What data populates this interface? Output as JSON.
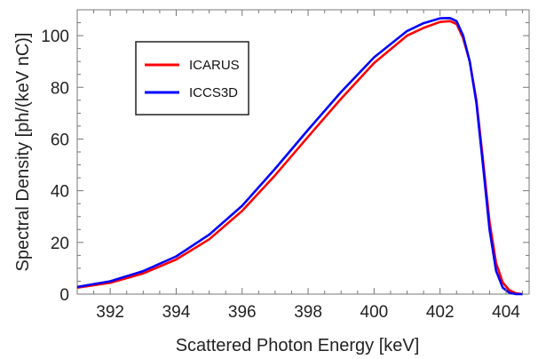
{
  "chart_data": {
    "type": "line",
    "title": "",
    "xlabel": "Scattered Photon Energy [keV]",
    "ylabel": "Spectral Density [ph/(keV nC)]",
    "xlim": [
      391,
      404.7
    ],
    "ylim": [
      0,
      110
    ],
    "xticks": [
      392,
      394,
      396,
      398,
      400,
      402,
      404
    ],
    "yticks": [
      0,
      20,
      40,
      60,
      80,
      100
    ],
    "grid": false,
    "legend_position": "top-left",
    "series": [
      {
        "name": "ICARUS",
        "color": "#ff0000",
        "x": [
          391.0,
          392.0,
          393.0,
          394.0,
          395.0,
          396.0,
          397.0,
          398.0,
          399.0,
          400.0,
          401.0,
          401.5,
          402.0,
          402.3,
          402.5,
          402.7,
          402.9,
          403.1,
          403.3,
          403.5,
          403.7,
          403.9,
          404.1,
          404.3,
          404.5
        ],
        "y": [
          2.5,
          4.4,
          8.0,
          13.4,
          21.2,
          32.2,
          46.0,
          60.9,
          75.6,
          89.4,
          100.0,
          103.0,
          105.3,
          105.6,
          104.5,
          99.0,
          90.0,
          75.0,
          52.0,
          28.0,
          12.0,
          4.5,
          1.5,
          0.3,
          0.0
        ]
      },
      {
        "name": "ICCS3D",
        "color": "#0000ff",
        "x": [
          391.0,
          392.0,
          393.0,
          394.0,
          395.0,
          396.0,
          397.0,
          398.0,
          399.0,
          400.0,
          401.0,
          401.5,
          402.0,
          402.3,
          402.5,
          402.7,
          402.9,
          403.1,
          403.3,
          403.5,
          403.7,
          403.9,
          404.1,
          404.3,
          404.5
        ],
        "y": [
          2.8,
          5.0,
          8.9,
          14.6,
          23.0,
          34.2,
          48.5,
          63.6,
          78.2,
          91.6,
          101.8,
          104.8,
          106.7,
          106.8,
          105.6,
          100.0,
          90.0,
          74.0,
          50.0,
          25.0,
          9.0,
          2.5,
          0.5,
          0.0,
          0.0
        ]
      }
    ]
  }
}
